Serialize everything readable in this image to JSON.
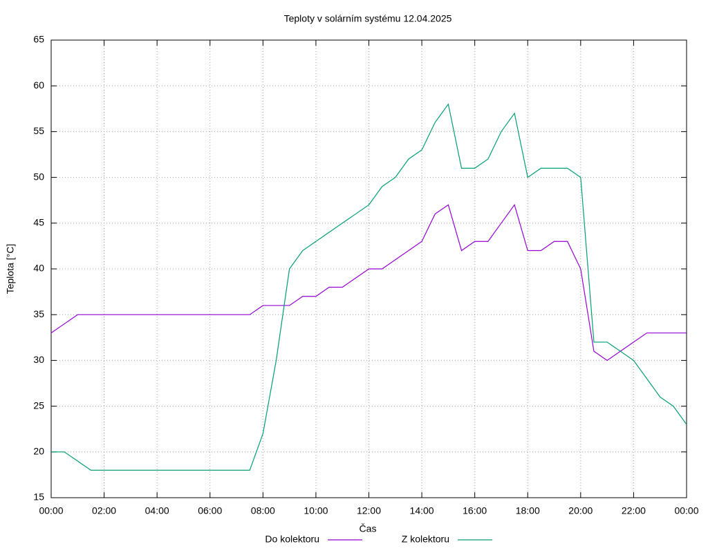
{
  "chart_data": {
    "type": "line",
    "title": "Teploty v solárním systému 12.04.2025",
    "xlabel": "Čas",
    "ylabel": "Teplota [°C]",
    "x": [
      0,
      0.5,
      1,
      1.5,
      2,
      2.5,
      3,
      3.5,
      4,
      4.5,
      5,
      5.5,
      6,
      6.5,
      7,
      7.5,
      8,
      8.5,
      9,
      9.5,
      10,
      10.5,
      11,
      11.5,
      12,
      12.5,
      13,
      13.5,
      14,
      14.5,
      15,
      15.5,
      16,
      16.5,
      17,
      17.5,
      18,
      18.5,
      19,
      19.5,
      20,
      20.5,
      21,
      21.5,
      22,
      22.5,
      23,
      23.5,
      24
    ],
    "series": [
      {
        "name": "Do kolektoru",
        "color": "#9400d3",
        "values": [
          33,
          34,
          35,
          35,
          35,
          35,
          35,
          35,
          35,
          35,
          35,
          35,
          35,
          35,
          35,
          35,
          36,
          36,
          36,
          37,
          37,
          38,
          38,
          39,
          40,
          40,
          41,
          42,
          43,
          46,
          47,
          42,
          43,
          43,
          45,
          47,
          42,
          42,
          43,
          43,
          40,
          31,
          30,
          31,
          32,
          33,
          33,
          33,
          33
        ]
      },
      {
        "name": "Z kolektoru",
        "color": "#009e73",
        "values": [
          20,
          20,
          19,
          18,
          18,
          18,
          18,
          18,
          18,
          18,
          18,
          18,
          18,
          18,
          18,
          18,
          22,
          30,
          40,
          42,
          43,
          44,
          45,
          46,
          47,
          49,
          50,
          52,
          53,
          56,
          58,
          51,
          51,
          52,
          55,
          57,
          50,
          51,
          51,
          51,
          50,
          32,
          32,
          31,
          30,
          28,
          26,
          25,
          23
        ]
      }
    ],
    "xlim": [
      0,
      24
    ],
    "xticks": [
      {
        "value": 0,
        "label": "00:00"
      },
      {
        "value": 2,
        "label": "02:00"
      },
      {
        "value": 4,
        "label": "04:00"
      },
      {
        "value": 6,
        "label": "06:00"
      },
      {
        "value": 8,
        "label": "08:00"
      },
      {
        "value": 10,
        "label": "10:00"
      },
      {
        "value": 12,
        "label": "12:00"
      },
      {
        "value": 14,
        "label": "14:00"
      },
      {
        "value": 16,
        "label": "16:00"
      },
      {
        "value": 18,
        "label": "18:00"
      },
      {
        "value": 20,
        "label": "20:00"
      },
      {
        "value": 22,
        "label": "22:00"
      },
      {
        "value": 24,
        "label": "00:00"
      }
    ],
    "ylim": [
      15,
      65
    ],
    "yticks": [
      15,
      20,
      25,
      30,
      35,
      40,
      45,
      50,
      55,
      60,
      65
    ],
    "grid": true,
    "legend": "bottom"
  }
}
